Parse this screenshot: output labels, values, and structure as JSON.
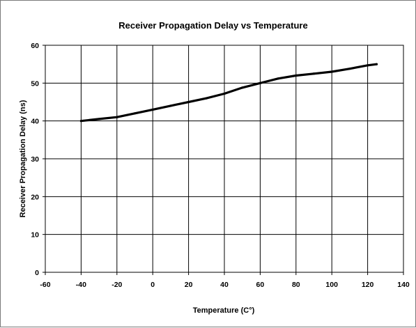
{
  "chart_data": {
    "type": "line",
    "title": "Receiver Propagation Delay vs Temperature",
    "xlabel": "Temperature (C°)",
    "ylabel": "Receiver Propagation Delay (ns)",
    "xlim": [
      -60,
      140
    ],
    "ylim": [
      0,
      60
    ],
    "xticks": [
      -60,
      -40,
      -20,
      0,
      20,
      40,
      60,
      80,
      100,
      120,
      140
    ],
    "yticks": [
      0,
      10,
      20,
      30,
      40,
      50,
      60
    ],
    "grid": true,
    "legend": "none",
    "line_color": "#000000",
    "series": [
      {
        "x": [
          -40,
          -30,
          -20,
          -10,
          0,
          10,
          20,
          30,
          40,
          50,
          60,
          70,
          80,
          90,
          100,
          110,
          120,
          125
        ],
        "y": [
          40,
          40.5,
          41,
          42,
          43,
          44,
          45,
          46,
          47.2,
          48.8,
          50,
          51.2,
          52,
          52.5,
          53,
          53.8,
          54.7,
          55
        ]
      }
    ]
  }
}
